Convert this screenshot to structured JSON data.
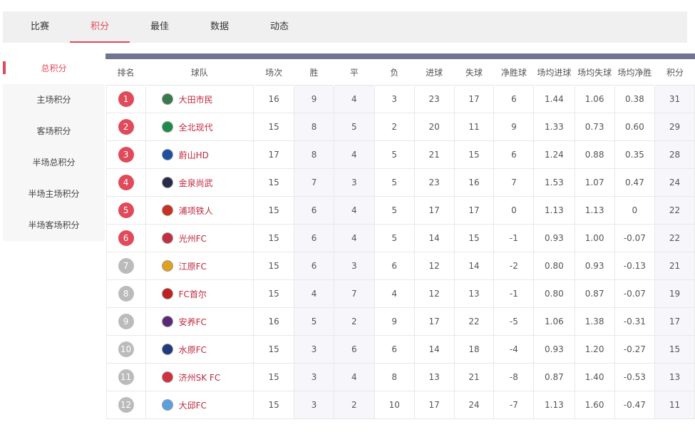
{
  "tabs": [
    "比赛",
    "积分",
    "最佳",
    "数据",
    "动态"
  ],
  "active_tab": 1,
  "side": [
    "总积分",
    "主场积分",
    "客场积分",
    "半场总积分",
    "半场主场积分",
    "半场客场积分"
  ],
  "headers": [
    "排名",
    "球队",
    "场次",
    "胜",
    "平",
    "负",
    "进球",
    "失球",
    "净胜球",
    "场均进球",
    "场均失球",
    "场均净胜",
    "积分"
  ],
  "rows": [
    [
      "1",
      "大田市民",
      "16",
      "9",
      "4",
      "3",
      "23",
      "17",
      "6",
      "1.44",
      "1.06",
      "0.38",
      "31"
    ],
    [
      "2",
      "全北现代",
      "15",
      "8",
      "5",
      "2",
      "20",
      "11",
      "9",
      "1.33",
      "0.73",
      "0.60",
      "29"
    ],
    [
      "3",
      "蔚山HD",
      "17",
      "8",
      "4",
      "5",
      "21",
      "15",
      "6",
      "1.24",
      "0.88",
      "0.35",
      "28"
    ],
    [
      "4",
      "金泉尚武",
      "15",
      "7",
      "3",
      "5",
      "23",
      "16",
      "7",
      "1.53",
      "1.07",
      "0.47",
      "24"
    ],
    [
      "5",
      "浦项铁人",
      "15",
      "6",
      "4",
      "5",
      "17",
      "17",
      "0",
      "1.13",
      "1.13",
      "0",
      "22"
    ],
    [
      "6",
      "光州FC",
      "15",
      "6",
      "4",
      "5",
      "14",
      "15",
      "-1",
      "0.93",
      "1.00",
      "-0.07",
      "22"
    ],
    [
      "7",
      "江原FC",
      "15",
      "6",
      "3",
      "6",
      "12",
      "14",
      "-2",
      "0.80",
      "0.93",
      "-0.13",
      "21"
    ],
    [
      "8",
      "FC首尔",
      "15",
      "4",
      "7",
      "4",
      "12",
      "13",
      "-1",
      "0.80",
      "0.87",
      "-0.07",
      "19"
    ],
    [
      "9",
      "安养FC",
      "16",
      "5",
      "2",
      "9",
      "17",
      "22",
      "-5",
      "1.06",
      "1.38",
      "-0.31",
      "17"
    ],
    [
      "10",
      "水原FC",
      "15",
      "3",
      "6",
      "6",
      "14",
      "18",
      "-4",
      "0.93",
      "1.20",
      "-0.27",
      "15"
    ],
    [
      "11",
      "济州SK FC",
      "15",
      "3",
      "4",
      "8",
      "13",
      "21",
      "-8",
      "0.87",
      "1.40",
      "-0.53",
      "13"
    ],
    [
      "12",
      "大邱FC",
      "15",
      "3",
      "2",
      "10",
      "17",
      "24",
      "-7",
      "1.13",
      "1.60",
      "-0.47",
      "11"
    ]
  ],
  "logo_colors": [
    "#3a7a4a",
    "#1e8a4a",
    "#1f4fa0",
    "#2a2a4a",
    "#c83020",
    "#c03040",
    "#e0a020",
    "#c02020",
    "#5a2a7a",
    "#203a80",
    "#d03040",
    "#5aa0e0"
  ],
  "colors": {
    "accent": "#e04a5a",
    "header_bar": "#727493",
    "top_rank": "#e04a5a",
    "other_rank": "#bbbbbb"
  }
}
